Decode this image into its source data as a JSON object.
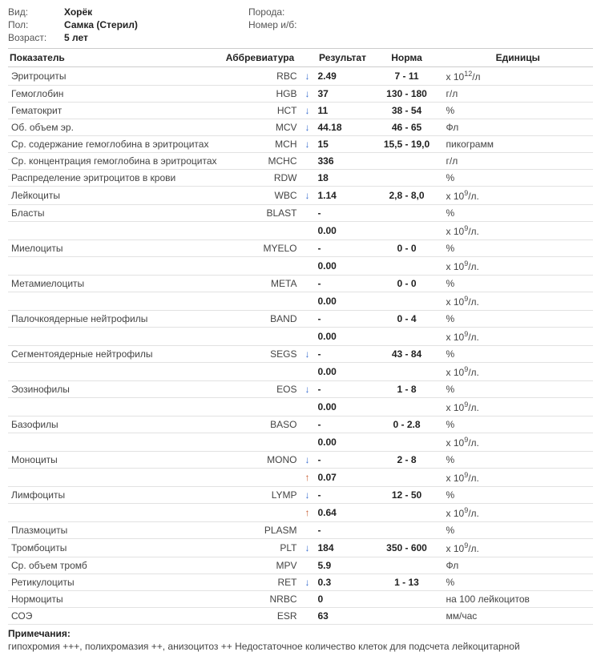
{
  "meta": {
    "labels": {
      "species": "Вид:",
      "sex": "Пол:",
      "age": "Возраст:",
      "breed": "Порода:",
      "record": "Номер и/б:"
    },
    "values": {
      "species": "Хорёк",
      "sex": "Самка (Стерил)",
      "age": "5 лет",
      "breed": "",
      "record": ""
    }
  },
  "table": {
    "headers": {
      "param": "Показатель",
      "abbr": "Аббревиатура",
      "result": "Результат",
      "norm": "Норма",
      "units": "Единицы"
    },
    "rows": [
      {
        "param": "Эритроциты",
        "abbr": "RBC",
        "arrow": "down",
        "result": "2.49",
        "norm": "7 - 11",
        "units": "x 10<sup>12</sup>/л"
      },
      {
        "param": "Гемоглобин",
        "abbr": "HGB",
        "arrow": "down",
        "result": "37",
        "norm": "130 - 180",
        "units": "г/л"
      },
      {
        "param": "Гематокрит",
        "abbr": "HCT",
        "arrow": "down",
        "result": "11",
        "norm": "38 - 54",
        "units": "%"
      },
      {
        "param": "Об. объем эр.",
        "abbr": "MCV",
        "arrow": "down",
        "result": "44.18",
        "norm": "46 - 65",
        "units": "Фл"
      },
      {
        "param": "Ср. содержание гемоглобина в эритроцитах",
        "abbr": "MCH",
        "arrow": "down",
        "result": "15",
        "norm": "15,5 - 19,0",
        "units": "пикограмм"
      },
      {
        "param": "Ср. концентрация гемоглобина в эритроцитах",
        "abbr": "MCHC",
        "arrow": "",
        "result": "336",
        "norm": "",
        "units": "г/л"
      },
      {
        "param": "Распределение эритроцитов в крови",
        "abbr": "RDW",
        "arrow": "",
        "result": "18",
        "norm": "",
        "units": "%"
      },
      {
        "param": "Лейкоциты",
        "abbr": "WBC",
        "arrow": "down",
        "result": "1.14",
        "norm": "2,8 - 8,0",
        "units": "x 10<sup>9</sup>/л."
      },
      {
        "param": "Бласты",
        "abbr": "BLAST",
        "arrow": "",
        "result": "-",
        "norm": "",
        "units": "%"
      },
      {
        "param": "",
        "abbr": "",
        "arrow": "",
        "result": "0.00",
        "norm": "",
        "units": "x 10<sup>9</sup>/л."
      },
      {
        "param": "Миелоциты",
        "abbr": "MYELO",
        "arrow": "",
        "result": "-",
        "norm": "0 - 0",
        "units": "%"
      },
      {
        "param": "",
        "abbr": "",
        "arrow": "",
        "result": "0.00",
        "norm": "",
        "units": "x 10<sup>9</sup>/л."
      },
      {
        "param": "Метамиелоциты",
        "abbr": "META",
        "arrow": "",
        "result": "-",
        "norm": "0 - 0",
        "units": "%"
      },
      {
        "param": "",
        "abbr": "",
        "arrow": "",
        "result": "0.00",
        "norm": "",
        "units": "x 10<sup>9</sup>/л."
      },
      {
        "param": "Палочкоядерные нейтрофилы",
        "abbr": "BAND",
        "arrow": "",
        "result": "-",
        "norm": "0 - 4",
        "units": "%"
      },
      {
        "param": "",
        "abbr": "",
        "arrow": "",
        "result": "0.00",
        "norm": "",
        "units": "x 10<sup>9</sup>/л."
      },
      {
        "param": "Сегментоядерные нейтрофилы",
        "abbr": "SEGS",
        "arrow": "down",
        "result": "-",
        "norm": "43 - 84",
        "units": "%"
      },
      {
        "param": "",
        "abbr": "",
        "arrow": "",
        "result": "0.00",
        "norm": "",
        "units": "x 10<sup>9</sup>/л."
      },
      {
        "param": "Эозинофилы",
        "abbr": "EOS",
        "arrow": "down",
        "result": "-",
        "norm": "1 - 8",
        "units": "%"
      },
      {
        "param": "",
        "abbr": "",
        "arrow": "",
        "result": "0.00",
        "norm": "",
        "units": "x 10<sup>9</sup>/л."
      },
      {
        "param": "Базофилы",
        "abbr": "BASO",
        "arrow": "",
        "result": "-",
        "norm": "0 - 2.8",
        "units": "%"
      },
      {
        "param": "",
        "abbr": "",
        "arrow": "",
        "result": "0.00",
        "norm": "",
        "units": "x 10<sup>9</sup>/л."
      },
      {
        "param": "Моноциты",
        "abbr": "MONO",
        "arrow": "down",
        "result": "-",
        "norm": "2 - 8",
        "units": "%"
      },
      {
        "param": "",
        "abbr": "",
        "arrow": "up",
        "result": "0.07",
        "norm": "",
        "units": "x 10<sup>9</sup>/л."
      },
      {
        "param": "Лимфоциты",
        "abbr": "LYMP",
        "arrow": "down",
        "result": "-",
        "norm": "12 - 50",
        "units": "%"
      },
      {
        "param": "",
        "abbr": "",
        "arrow": "up",
        "result": "0.64",
        "norm": "",
        "units": "x 10<sup>9</sup>/л."
      },
      {
        "param": "Плазмоциты",
        "abbr": "PLASM",
        "arrow": "",
        "result": "-",
        "norm": "",
        "units": "%"
      },
      {
        "param": "Тромбоциты",
        "abbr": "PLT",
        "arrow": "down",
        "result": "184",
        "norm": "350 - 600",
        "units": "x 10<sup>9</sup>/л."
      },
      {
        "param": "Ср. объем тромб",
        "abbr": "MPV",
        "arrow": "",
        "result": "5.9",
        "norm": "",
        "units": "Фл"
      },
      {
        "param": "Ретикулоциты",
        "abbr": "RET",
        "arrow": "down",
        "result": "0.3",
        "norm": "1 - 13",
        "units": "%"
      },
      {
        "param": "Нормоциты",
        "abbr": "NRBC",
        "arrow": "",
        "result": "0",
        "norm": "",
        "units": "на 100 лейкоцитов"
      },
      {
        "param": "СОЭ",
        "abbr": "ESR",
        "arrow": "",
        "result": "63",
        "norm": "",
        "units": "мм/час"
      }
    ]
  },
  "notes": {
    "heading": "Примечания:",
    "body": "гипохромия +++, полихромазия ++, анизоцитоз ++ Недостаточное количество клеток для подсчета лейкоцитарной"
  }
}
